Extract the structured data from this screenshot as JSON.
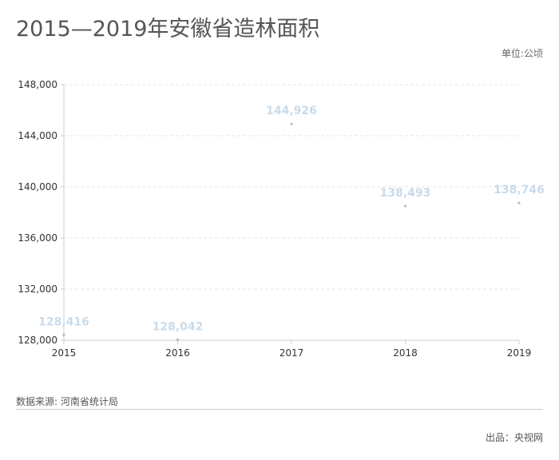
{
  "title": "2015—2019年安徽省造林面积",
  "unit_label": "单位:公顷",
  "source": "数据来源: 河南省统计局",
  "credit": "出品：央视网",
  "colors": {
    "point": "#a8bfd2",
    "data_label": "#c9dbea",
    "grid": "#e6e6e6",
    "axis": "#cccccc"
  },
  "chart_data": {
    "type": "scatter",
    "title": "2015—2019年安徽省造林面积",
    "xlabel": "",
    "ylabel": "",
    "x": [
      "2015",
      "2016",
      "2017",
      "2018",
      "2019"
    ],
    "values": [
      128416,
      128042,
      144926,
      138493,
      138746
    ],
    "data_labels": [
      "128,416",
      "128,042",
      "144,926",
      "138,493",
      "138,746"
    ],
    "ylim": [
      128000,
      148000
    ],
    "yticks": [
      128000,
      132000,
      136000,
      140000,
      144000,
      148000
    ],
    "ytick_labels": [
      "128,000",
      "132,000",
      "136,000",
      "140,000",
      "144,000",
      "148,000"
    ],
    "grid": true,
    "legend": "none"
  }
}
